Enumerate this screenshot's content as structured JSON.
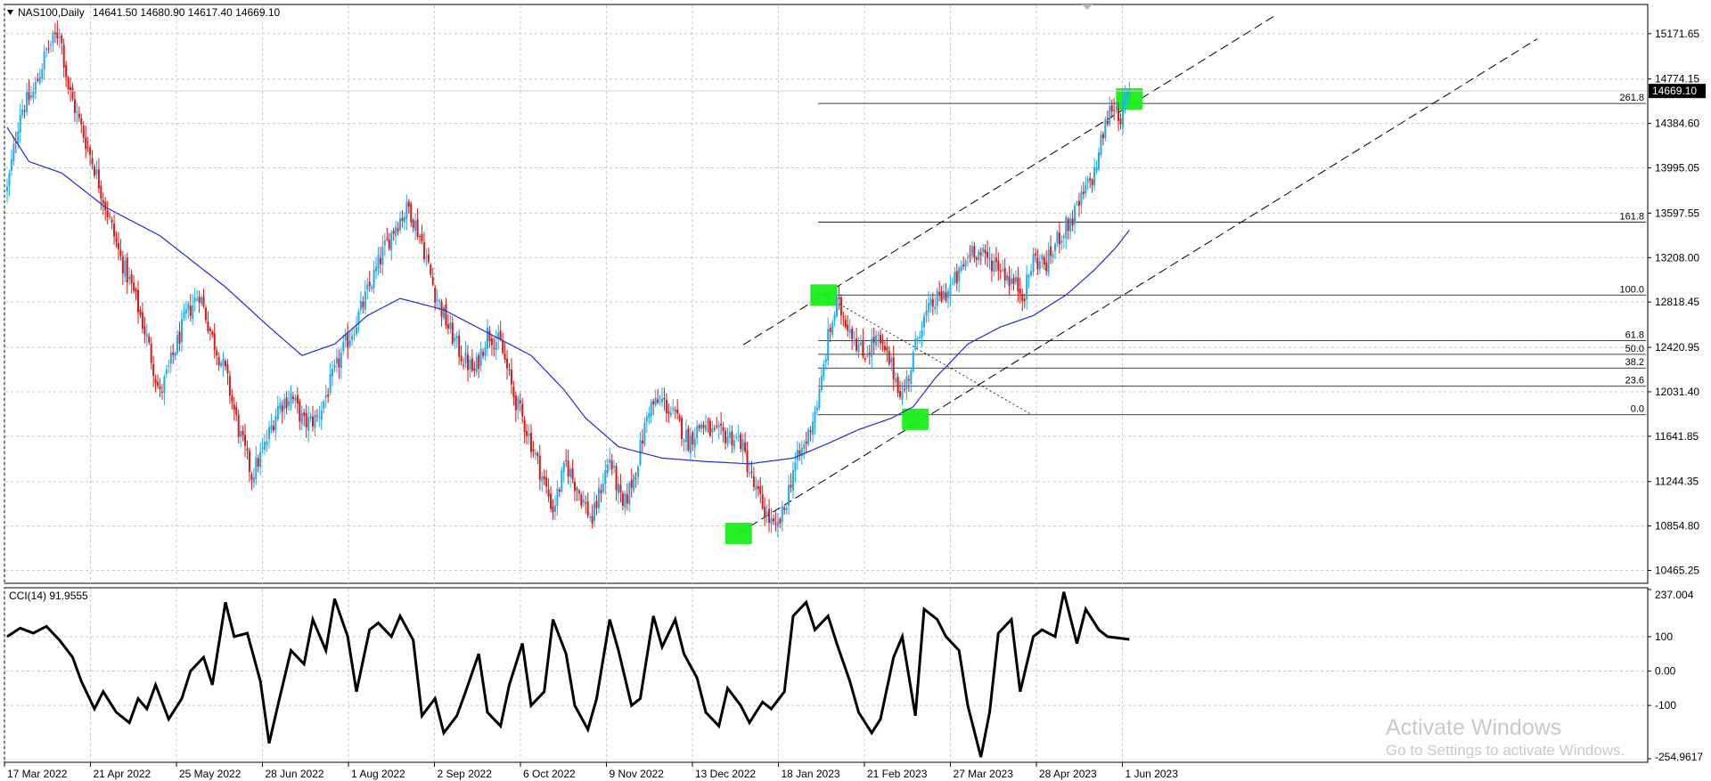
{
  "header": {
    "symbol": "NAS100,Daily",
    "ohlc": "14641.50 14680.90 14617.40 14669.10"
  },
  "watermark": {
    "title": "Activate Windows",
    "subtitle": "Go to Settings to activate Windows."
  },
  "chart_data": [
    {
      "type": "candlestick",
      "symbol": "NAS100",
      "timeframe": "Daily",
      "y_axis_ticks": [
        "15171.65",
        "14774.15",
        "14384.60",
        "13995.05",
        "13597.55",
        "13208.00",
        "12818.45",
        "12420.95",
        "12031.40",
        "11641.85",
        "11244.35",
        "10854.80",
        "10465.25"
      ],
      "ylim": [
        10360,
        15420
      ],
      "last_price": "14669.10",
      "x_axis_ticks": [
        "17 Mar 2022",
        "21 Apr 2022",
        "25 May 2022",
        "28 Jun 2022",
        "1 Aug 2022",
        "2 Sep 2022",
        "6 Oct 2022",
        "9 Nov 2022",
        "13 Dec 2022",
        "18 Jan 2023",
        "21 Feb 2023",
        "27 Mar 2023",
        "28 Apr 2023",
        "1 Jun 2023"
      ],
      "close_path": [
        [
          0,
          13800
        ],
        [
          6,
          14500
        ],
        [
          12,
          14650
        ],
        [
          18,
          15020
        ],
        [
          24,
          15200
        ],
        [
          28,
          14700
        ],
        [
          33,
          14400
        ],
        [
          40,
          14000
        ],
        [
          46,
          13600
        ],
        [
          52,
          13200
        ],
        [
          58,
          12900
        ],
        [
          64,
          12500
        ],
        [
          70,
          12000
        ],
        [
          76,
          12350
        ],
        [
          82,
          12700
        ],
        [
          88,
          12900
        ],
        [
          94,
          12500
        ],
        [
          100,
          12200
        ],
        [
          106,
          11700
        ],
        [
          112,
          11300
        ],
        [
          118,
          11550
        ],
        [
          124,
          11900
        ],
        [
          130,
          12000
        ],
        [
          136,
          11750
        ],
        [
          142,
          11800
        ],
        [
          148,
          12100
        ],
        [
          154,
          12400
        ],
        [
          160,
          12650
        ],
        [
          166,
          12950
        ],
        [
          172,
          13250
        ],
        [
          178,
          13500
        ],
        [
          184,
          13650
        ],
        [
          190,
          13350
        ],
        [
          196,
          12900
        ],
        [
          202,
          12600
        ],
        [
          208,
          12350
        ],
        [
          214,
          12200
        ],
        [
          220,
          12550
        ],
        [
          226,
          12450
        ],
        [
          232,
          12000
        ],
        [
          238,
          11700
        ],
        [
          244,
          11350
        ],
        [
          250,
          11000
        ],
        [
          256,
          11400
        ],
        [
          262,
          11150
        ],
        [
          268,
          10900
        ],
        [
          272,
          11200
        ],
        [
          276,
          11450
        ],
        [
          282,
          11000
        ],
        [
          288,
          11350
        ],
        [
          294,
          11900
        ],
        [
          300,
          11950
        ],
        [
          306,
          11800
        ],
        [
          312,
          11600
        ],
        [
          318,
          11750
        ],
        [
          324,
          11650
        ],
        [
          330,
          11650
        ],
        [
          336,
          11600
        ],
        [
          342,
          11200
        ],
        [
          348,
          10950
        ],
        [
          352,
          10800
        ],
        [
          356,
          11000
        ],
        [
          360,
          11350
        ],
        [
          366,
          11600
        ],
        [
          372,
          12000
        ],
        [
          376,
          12500
        ],
        [
          380,
          12800
        ],
        [
          386,
          12600
        ],
        [
          392,
          12350
        ],
        [
          398,
          12500
        ],
        [
          404,
          12300
        ],
        [
          410,
          12000
        ],
        [
          414,
          12250
        ],
        [
          418,
          12600
        ],
        [
          424,
          12800
        ],
        [
          430,
          12900
        ],
        [
          436,
          13050
        ],
        [
          442,
          13300
        ],
        [
          448,
          13200
        ],
        [
          454,
          13150
        ],
        [
          460,
          13000
        ],
        [
          466,
          12900
        ],
        [
          470,
          13200
        ],
        [
          476,
          13150
        ],
        [
          482,
          13400
        ],
        [
          488,
          13550
        ],
        [
          494,
          13800
        ],
        [
          498,
          13950
        ],
        [
          502,
          14300
        ],
        [
          506,
          14550
        ],
        [
          510,
          14450
        ],
        [
          514,
          14669
        ]
      ],
      "moving_average_path": [
        [
          0,
          14350
        ],
        [
          10,
          14050
        ],
        [
          25,
          13950
        ],
        [
          45,
          13650
        ],
        [
          70,
          13400
        ],
        [
          100,
          12950
        ],
        [
          120,
          12600
        ],
        [
          135,
          12350
        ],
        [
          150,
          12450
        ],
        [
          165,
          12700
        ],
        [
          180,
          12850
        ],
        [
          200,
          12750
        ],
        [
          220,
          12550
        ],
        [
          240,
          12350
        ],
        [
          255,
          12050
        ],
        [
          265,
          11800
        ],
        [
          280,
          11550
        ],
        [
          300,
          11450
        ],
        [
          320,
          11420
        ],
        [
          340,
          11400
        ],
        [
          360,
          11450
        ],
        [
          375,
          11570
        ],
        [
          390,
          11700
        ],
        [
          405,
          11800
        ],
        [
          415,
          11900
        ],
        [
          425,
          12150
        ],
        [
          440,
          12450
        ],
        [
          455,
          12600
        ],
        [
          470,
          12700
        ],
        [
          485,
          12880
        ],
        [
          498,
          13100
        ],
        [
          508,
          13300
        ],
        [
          514,
          13450
        ]
      ],
      "fibonacci_levels": [
        {
          "label": "261.8",
          "price": 14560
        },
        {
          "label": "161.8",
          "price": 13520
        },
        {
          "label": "100.0",
          "price": 12880
        },
        {
          "label": "61.8",
          "price": 12480
        },
        {
          "label": "50.0",
          "price": 12360
        },
        {
          "label": "38.2",
          "price": 12240
        },
        {
          "label": "23.6",
          "price": 12080
        },
        {
          "label": "0.0",
          "price": 11830
        }
      ]
    },
    {
      "type": "line",
      "title": "CCI(14) 91.9555",
      "y_axis_ticks": [
        "237.004",
        "100",
        "0.00",
        "-100",
        "-254.9617"
      ],
      "ylim": [
        -254.9617,
        237.004
      ],
      "x": [
        0,
        6,
        12,
        18,
        24,
        30,
        34,
        40,
        44,
        50,
        56,
        60,
        64,
        68,
        74,
        80,
        84,
        90,
        94,
        100,
        104,
        110,
        116,
        120,
        124,
        130,
        136,
        140,
        146,
        150,
        156,
        160,
        166,
        170,
        176,
        180,
        186,
        190,
        196,
        200,
        206,
        210,
        216,
        220,
        226,
        230,
        236,
        240,
        246,
        250,
        256,
        260,
        266,
        270,
        276,
        280,
        286,
        290,
        296,
        300,
        306,
        310,
        316,
        320,
        326,
        330,
        336,
        340,
        346,
        350,
        356,
        360,
        366,
        370,
        376,
        380,
        386,
        390,
        396,
        400,
        406,
        410,
        416,
        420,
        426,
        430,
        436,
        440,
        446,
        450,
        454,
        460,
        464,
        470,
        474,
        480,
        484,
        490,
        494,
        500,
        504,
        510,
        514
      ],
      "values": [
        100,
        125,
        110,
        130,
        90,
        40,
        -30,
        -110,
        -60,
        -120,
        -150,
        -80,
        -110,
        -40,
        -140,
        -80,
        0,
        40,
        -40,
        200,
        100,
        110,
        -30,
        -210,
        -100,
        60,
        20,
        150,
        60,
        210,
        100,
        -60,
        120,
        140,
        100,
        160,
        90,
        -130,
        -80,
        -180,
        -130,
        -60,
        50,
        -120,
        -160,
        -40,
        80,
        -100,
        -60,
        150,
        50,
        -100,
        -170,
        -80,
        150,
        60,
        -100,
        -80,
        160,
        70,
        150,
        50,
        -20,
        -120,
        -160,
        -50,
        -100,
        -150,
        -90,
        -110,
        -60,
        160,
        200,
        120,
        160,
        80,
        -30,
        -120,
        -180,
        -140,
        40,
        100,
        -130,
        180,
        150,
        100,
        60,
        -100,
        -250,
        -120,
        110,
        150,
        -60,
        100,
        120,
        100,
        230,
        80,
        180,
        120,
        100,
        95,
        91.9555
      ]
    }
  ]
}
